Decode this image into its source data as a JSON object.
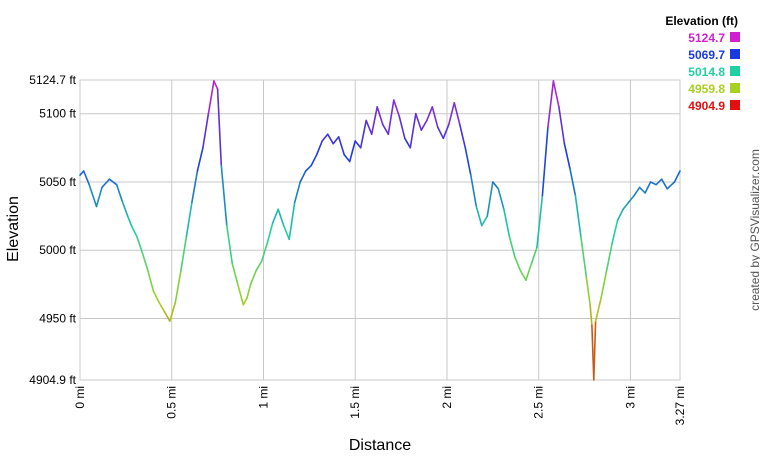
{
  "chart_data": {
    "type": "line",
    "xlabel": "Distance",
    "ylabel": "Elevation",
    "xlim": [
      0,
      3.27
    ],
    "ylim": [
      4904.9,
      5124.7
    ],
    "grid": true,
    "x_ticks": [
      {
        "value": 0,
        "label": "0 mi"
      },
      {
        "value": 0.5,
        "label": "0.5 mi"
      },
      {
        "value": 1,
        "label": "1 mi"
      },
      {
        "value": 1.5,
        "label": "1.5 mi"
      },
      {
        "value": 2,
        "label": "2 mi"
      },
      {
        "value": 2.5,
        "label": "2.5 mi"
      },
      {
        "value": 3,
        "label": "3 mi"
      },
      {
        "value": 3.27,
        "label": "3.27 mi"
      }
    ],
    "y_ticks": [
      {
        "value": 4904.9,
        "label": "4904.9 ft"
      },
      {
        "value": 4950,
        "label": "4950 ft"
      },
      {
        "value": 5000,
        "label": "5000 ft"
      },
      {
        "value": 5050,
        "label": "5050 ft"
      },
      {
        "value": 5100,
        "label": "5100 ft"
      },
      {
        "value": 5124.7,
        "label": "5124.7 ft"
      }
    ],
    "legend": {
      "title": "Elevation (ft)",
      "placement": "top-right",
      "entries": [
        {
          "label": "5124.7",
          "color": "#d020d0"
        },
        {
          "label": "5069.7",
          "color": "#1a3ae0"
        },
        {
          "label": "5014.8",
          "color": "#20d0a0"
        },
        {
          "label": "4959.8",
          "color": "#a8d020"
        },
        {
          "label": "4904.9",
          "color": "#e01010"
        }
      ]
    },
    "credit": "created by GPSVisualizer.com",
    "series": [
      {
        "x": [
          0,
          0.02,
          0.05,
          0.09,
          0.12,
          0.16,
          0.2,
          0.23,
          0.26,
          0.28,
          0.31,
          0.34,
          0.37,
          0.4,
          0.43,
          0.46,
          0.49,
          0.52,
          0.55,
          0.58,
          0.61,
          0.64,
          0.67,
          0.7,
          0.73,
          0.75,
          0.77,
          0.8,
          0.83,
          0.86,
          0.89,
          0.91,
          0.93,
          0.96,
          0.99,
          1.02,
          1.05,
          1.08,
          1.11,
          1.14,
          1.17,
          1.2,
          1.23,
          1.26,
          1.29,
          1.32,
          1.35,
          1.38,
          1.41,
          1.44,
          1.47,
          1.5,
          1.53,
          1.56,
          1.59,
          1.62,
          1.65,
          1.68,
          1.71,
          1.74,
          1.77,
          1.8,
          1.83,
          1.86,
          1.89,
          1.92,
          1.95,
          1.98,
          2.01,
          2.04,
          2.07,
          2.1,
          2.13,
          2.16,
          2.19,
          2.22,
          2.25,
          2.28,
          2.31,
          2.34,
          2.37,
          2.4,
          2.43,
          2.46,
          2.49,
          2.52,
          2.55,
          2.58,
          2.61,
          2.64,
          2.67,
          2.7,
          2.73,
          2.76,
          2.78,
          2.79,
          2.8,
          2.81,
          2.84,
          2.87,
          2.9,
          2.93,
          2.96,
          2.99,
          3.02,
          3.05,
          3.08,
          3.11,
          3.14,
          3.17,
          3.2,
          3.24,
          3.27
        ],
        "y": [
          5055,
          5058,
          5048,
          5032,
          5046,
          5052,
          5048,
          5036,
          5025,
          5018,
          5010,
          4998,
          4985,
          4970,
          4962,
          4955,
          4948,
          4962,
          4985,
          5010,
          5035,
          5058,
          5075,
          5100,
          5124,
          5118,
          5062,
          5018,
          4990,
          4975,
          4960,
          4965,
          4975,
          4985,
          4992,
          5005,
          5020,
          5030,
          5018,
          5008,
          5035,
          5050,
          5058,
          5062,
          5070,
          5080,
          5085,
          5078,
          5083,
          5070,
          5065,
          5080,
          5075,
          5095,
          5085,
          5105,
          5092,
          5085,
          5110,
          5098,
          5082,
          5075,
          5100,
          5088,
          5095,
          5105,
          5090,
          5082,
          5092,
          5108,
          5092,
          5075,
          5055,
          5032,
          5018,
          5025,
          5050,
          5045,
          5030,
          5010,
          4995,
          4985,
          4978,
          4990,
          5002,
          5040,
          5090,
          5124,
          5105,
          5078,
          5060,
          5040,
          5010,
          4980,
          4960,
          4945,
          4905,
          4948,
          4965,
          4985,
          5005,
          5022,
          5030,
          5035,
          5040,
          5046,
          5042,
          5050,
          5048,
          5052,
          5045,
          5050,
          5058
        ]
      }
    ]
  }
}
